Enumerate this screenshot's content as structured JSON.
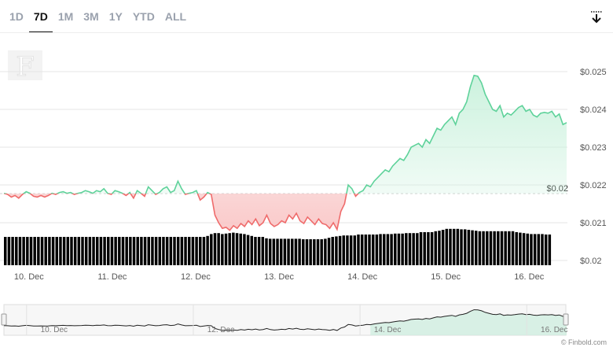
{
  "tabs": [
    {
      "label": "1D",
      "active": false
    },
    {
      "label": "7D",
      "active": true
    },
    {
      "label": "1M",
      "active": false
    },
    {
      "label": "3M",
      "active": false
    },
    {
      "label": "1Y",
      "active": false
    },
    {
      "label": "YTD",
      "active": false
    },
    {
      "label": "ALL",
      "active": false
    }
  ],
  "download_icon": "download-icon",
  "logo_letter": "F",
  "credit": "© Finbold.com",
  "colors": {
    "up": "#5ed29a",
    "up_fill": "#c9f1dc",
    "down": "#ef6b6b",
    "down_fill": "#f9c7c7",
    "volume": "#000000",
    "grid": "#e6e6e6",
    "navigator_fill": "#cfeee0"
  },
  "chart_data": {
    "type": "area",
    "title": "",
    "xlabel": "",
    "ylabel": "",
    "ylim": [
      0.02,
      0.025
    ],
    "yticks": [
      "$0.02",
      "$0.021",
      "$0.022",
      "$0.023",
      "$0.024",
      "$0.025"
    ],
    "xticks": [
      "10. Dec",
      "11. Dec",
      "12. Dec",
      "13. Dec",
      "14. Dec",
      "15. Dec",
      "16. Dec"
    ],
    "reference_label": "$0.02",
    "reference_value": 0.02177,
    "x_start_day": 9.7,
    "x_end_day": 16.45,
    "series": [
      {
        "values": [
          0.02178,
          0.02175,
          0.02168,
          0.02172,
          0.02165,
          0.02175,
          0.02182,
          0.02178,
          0.0217,
          0.02168,
          0.02172,
          0.02168,
          0.02172,
          0.02178,
          0.02175,
          0.0218,
          0.02182,
          0.02178,
          0.0218,
          0.02175,
          0.02178,
          0.0218,
          0.02185,
          0.02182,
          0.02178,
          0.02185,
          0.02182,
          0.0219,
          0.02178,
          0.02175,
          0.02185,
          0.02182,
          0.02178,
          0.02172,
          0.0218,
          0.02165,
          0.02185,
          0.02178,
          0.0217,
          0.02195,
          0.02185,
          0.02175,
          0.0218,
          0.0219,
          0.02195,
          0.0218,
          0.02185,
          0.0221,
          0.0219,
          0.02175,
          0.02178,
          0.0218,
          0.02185,
          0.0216,
          0.02168,
          0.0218,
          0.02175,
          0.0212,
          0.021,
          0.02085,
          0.02088,
          0.0208,
          0.02092,
          0.02085,
          0.02098,
          0.0209,
          0.02105,
          0.02095,
          0.0211,
          0.02092,
          0.021,
          0.0212,
          0.02098,
          0.0209,
          0.02095,
          0.02105,
          0.021,
          0.0212,
          0.0211,
          0.02125,
          0.02105,
          0.02098,
          0.02115,
          0.02105,
          0.02095,
          0.0211,
          0.02098,
          0.02095,
          0.02085,
          0.021,
          0.02082,
          0.0213,
          0.0215,
          0.022,
          0.0219,
          0.0217,
          0.0218,
          0.02185,
          0.022,
          0.02195,
          0.0221,
          0.0222,
          0.0223,
          0.0224,
          0.02235,
          0.0225,
          0.0226,
          0.0227,
          0.02265,
          0.0228,
          0.023,
          0.02305,
          0.0231,
          0.023,
          0.0232,
          0.0231,
          0.0233,
          0.0235,
          0.02345,
          0.0236,
          0.0237,
          0.0238,
          0.0236,
          0.0239,
          0.024,
          0.0242,
          0.0246,
          0.0249,
          0.02488,
          0.0247,
          0.0244,
          0.0242,
          0.024,
          0.02395,
          0.0241,
          0.0238,
          0.0239,
          0.02385,
          0.02395,
          0.02405,
          0.0241,
          0.02395,
          0.024,
          0.02385,
          0.0238,
          0.0239,
          0.02392,
          0.0239,
          0.02395,
          0.0238,
          0.02388,
          0.0236,
          0.02365
        ]
      }
    ],
    "volume": [
      0.6,
      0.6,
      0.6,
      0.6,
      0.6,
      0.6,
      0.6,
      0.6,
      0.6,
      0.6,
      0.6,
      0.6,
      0.6,
      0.6,
      0.6,
      0.6,
      0.6,
      0.6,
      0.6,
      0.6,
      0.6,
      0.6,
      0.6,
      0.6,
      0.6,
      0.6,
      0.6,
      0.6,
      0.6,
      0.6,
      0.6,
      0.6,
      0.6,
      0.6,
      0.6,
      0.6,
      0.6,
      0.6,
      0.6,
      0.6,
      0.6,
      0.6,
      0.6,
      0.6,
      0.6,
      0.6,
      0.6,
      0.6,
      0.6,
      0.6,
      0.6,
      0.6,
      0.6,
      0.6,
      0.6,
      0.62,
      0.66,
      0.68,
      0.68,
      0.66,
      0.67,
      0.68,
      0.69,
      0.68,
      0.67,
      0.66,
      0.64,
      0.62,
      0.6,
      0.6,
      0.6,
      0.57,
      0.56,
      0.56,
      0.56,
      0.56,
      0.56,
      0.56,
      0.56,
      0.56,
      0.56,
      0.55,
      0.55,
      0.55,
      0.55,
      0.55,
      0.55,
      0.56,
      0.58,
      0.6,
      0.61,
      0.62,
      0.63,
      0.63,
      0.63,
      0.63,
      0.65,
      0.65,
      0.65,
      0.65,
      0.65,
      0.65,
      0.66,
      0.66,
      0.66,
      0.66,
      0.67,
      0.67,
      0.67,
      0.68,
      0.68,
      0.68,
      0.68,
      0.7,
      0.7,
      0.7,
      0.7,
      0.72,
      0.73,
      0.75,
      0.77,
      0.77,
      0.77,
      0.77,
      0.76,
      0.76,
      0.75,
      0.74,
      0.73,
      0.72,
      0.72,
      0.72,
      0.72,
      0.72,
      0.72,
      0.72,
      0.72,
      0.72,
      0.72,
      0.7,
      0.69,
      0.68,
      0.67,
      0.66,
      0.66,
      0.66,
      0.66,
      0.65,
      0.65
    ]
  }
}
